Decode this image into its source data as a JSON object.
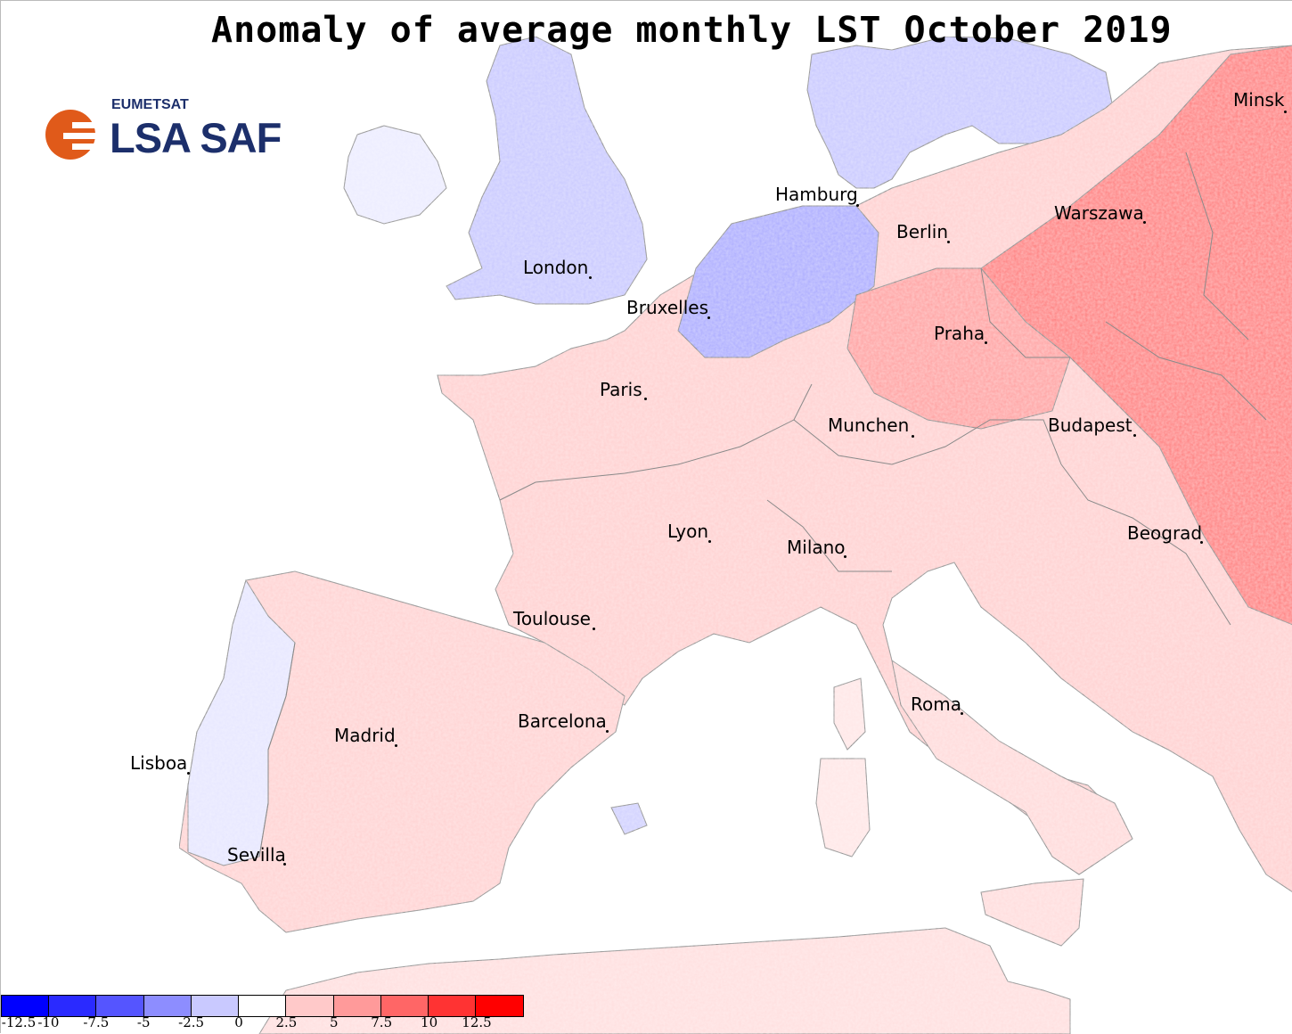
{
  "title": "Anomaly of average monthly LST October 2019",
  "logo": {
    "org": "EUMETSAT",
    "name": "LSA SAF",
    "color": "#e05a1a"
  },
  "cities": [
    {
      "label": "Minsk"
    },
    {
      "label": "Hamburg"
    },
    {
      "label": "Warszawa"
    },
    {
      "label": "Berlin"
    },
    {
      "label": "London"
    },
    {
      "label": "Bruxelles"
    },
    {
      "label": "Praha"
    },
    {
      "label": "Paris"
    },
    {
      "label": "Munchen"
    },
    {
      "label": "Budapest"
    },
    {
      "label": "Lyon"
    },
    {
      "label": "Milano"
    },
    {
      "label": "Beograd"
    },
    {
      "label": "Toulouse"
    },
    {
      "label": "Roma"
    },
    {
      "label": "Barcelona"
    },
    {
      "label": "Madrid"
    },
    {
      "label": "Lisboa"
    },
    {
      "label": "Sevilla"
    }
  ],
  "legend": {
    "colors": [
      "#0000ff",
      "#2a2aff",
      "#5555ff",
      "#8d8dff",
      "#c9c9ff",
      "#ffffff",
      "#ffc9c9",
      "#ff9a9a",
      "#ff6666",
      "#ff3333",
      "#ff0000"
    ],
    "ticks": [
      "-12.5",
      "-10",
      "-7.5",
      "-5",
      "-2.5",
      "0",
      "2.5",
      "5",
      "7.5",
      "10",
      "12.5"
    ]
  },
  "map_colors": {
    "land_neutral": "#ffe2e2",
    "cool": "#c4c4ff",
    "cool_strong": "#a8a8ff",
    "warm": "#ffb3b3",
    "warm_strong": "#ff5050",
    "border": "#808080"
  }
}
